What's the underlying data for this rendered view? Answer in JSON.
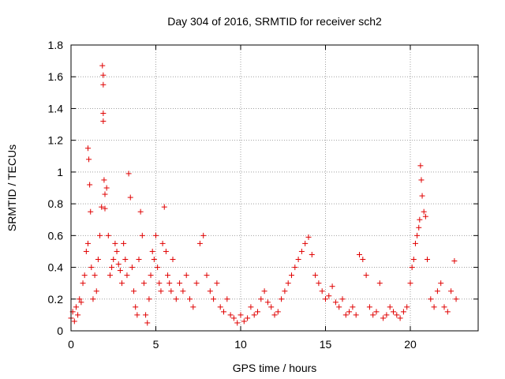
{
  "chart_data": {
    "type": "scatter",
    "title": "Day 304 of 2016, SRMTID for receiver sch2",
    "xlabel": "GPS time / hours",
    "ylabel": "SRMTID / TECUs",
    "xlim": [
      0,
      24
    ],
    "ylim": [
      0,
      1.8
    ],
    "xticks": [
      0,
      5,
      10,
      15,
      20
    ],
    "xtick_labels": [
      "0",
      "5",
      "10",
      "15",
      "20"
    ],
    "yticks": [
      0,
      0.2,
      0.4,
      0.6,
      0.8,
      1,
      1.2,
      1.4,
      1.6,
      1.8
    ],
    "ytick_labels": [
      "0",
      "0.2",
      "0.4",
      "0.6",
      "0.8",
      "1",
      "1.2",
      "1.4",
      "1.6",
      "1.8"
    ],
    "grid": true,
    "marker": "plus",
    "color": "#e00000",
    "series": [
      {
        "name": "SRMTID",
        "x": [
          0.0,
          0.1,
          0.2,
          0.3,
          0.4,
          0.5,
          0.6,
          0.7,
          0.8,
          0.9,
          1.0,
          1.0,
          1.05,
          1.1,
          1.15,
          1.2,
          1.3,
          1.4,
          1.5,
          1.6,
          1.7,
          1.8,
          1.85,
          1.9,
          1.9,
          1.9,
          1.9,
          1.95,
          2.0,
          2.0,
          2.1,
          2.2,
          2.3,
          2.4,
          2.5,
          2.6,
          2.7,
          2.8,
          2.9,
          3.0,
          3.1,
          3.2,
          3.3,
          3.4,
          3.5,
          3.6,
          3.7,
          3.8,
          3.9,
          4.0,
          4.1,
          4.2,
          4.3,
          4.4,
          4.5,
          4.6,
          4.7,
          4.8,
          4.9,
          5.0,
          5.1,
          5.2,
          5.3,
          5.4,
          5.5,
          5.6,
          5.7,
          5.8,
          5.9,
          6.0,
          6.2,
          6.4,
          6.6,
          6.8,
          7.0,
          7.2,
          7.4,
          7.6,
          7.8,
          8.0,
          8.2,
          8.4,
          8.6,
          8.8,
          9.0,
          9.2,
          9.4,
          9.6,
          9.8,
          10.0,
          10.2,
          10.4,
          10.6,
          10.8,
          11.0,
          11.2,
          11.4,
          11.6,
          11.8,
          12.0,
          12.2,
          12.4,
          12.6,
          12.8,
          13.0,
          13.2,
          13.4,
          13.6,
          13.8,
          14.0,
          14.2,
          14.4,
          14.6,
          14.8,
          15.0,
          15.2,
          15.4,
          15.6,
          15.8,
          16.0,
          16.2,
          16.4,
          16.6,
          16.8,
          17.0,
          17.2,
          17.4,
          17.6,
          17.8,
          18.0,
          18.2,
          18.4,
          18.6,
          18.8,
          19.0,
          19.2,
          19.4,
          19.6,
          19.8,
          20.0,
          20.1,
          20.2,
          20.3,
          20.4,
          20.5,
          20.55,
          20.6,
          20.65,
          20.7,
          20.8,
          20.9,
          21.0,
          21.2,
          21.4,
          21.6,
          21.8,
          22.0,
          22.2,
          22.4,
          22.6,
          22.7
        ],
        "y": [
          0.08,
          0.12,
          0.06,
          0.15,
          0.1,
          0.2,
          0.18,
          0.3,
          0.35,
          0.5,
          0.55,
          1.15,
          1.08,
          0.92,
          0.75,
          0.4,
          0.2,
          0.35,
          0.25,
          0.45,
          0.6,
          0.78,
          1.67,
          1.61,
          1.55,
          1.37,
          1.32,
          0.95,
          0.86,
          0.77,
          0.9,
          0.6,
          0.35,
          0.4,
          0.45,
          0.55,
          0.5,
          0.42,
          0.38,
          0.3,
          0.55,
          0.45,
          0.35,
          0.99,
          0.84,
          0.4,
          0.25,
          0.15,
          0.1,
          0.45,
          0.75,
          0.6,
          0.3,
          0.1,
          0.05,
          0.2,
          0.35,
          0.5,
          0.45,
          0.6,
          0.4,
          0.3,
          0.25,
          0.55,
          0.78,
          0.5,
          0.35,
          0.3,
          0.25,
          0.45,
          0.2,
          0.3,
          0.25,
          0.35,
          0.2,
          0.15,
          0.3,
          0.55,
          0.6,
          0.35,
          0.25,
          0.2,
          0.3,
          0.15,
          0.12,
          0.2,
          0.1,
          0.08,
          0.05,
          0.1,
          0.06,
          0.08,
          0.15,
          0.1,
          0.12,
          0.2,
          0.25,
          0.18,
          0.15,
          0.1,
          0.12,
          0.2,
          0.25,
          0.3,
          0.35,
          0.4,
          0.45,
          0.5,
          0.55,
          0.59,
          0.48,
          0.35,
          0.3,
          0.25,
          0.2,
          0.22,
          0.28,
          0.18,
          0.15,
          0.2,
          0.1,
          0.12,
          0.15,
          0.1,
          0.48,
          0.45,
          0.35,
          0.15,
          0.1,
          0.12,
          0.3,
          0.08,
          0.1,
          0.15,
          0.12,
          0.1,
          0.08,
          0.12,
          0.15,
          0.3,
          0.4,
          0.45,
          0.55,
          0.6,
          0.65,
          0.7,
          1.04,
          0.95,
          0.85,
          0.75,
          0.72,
          0.45,
          0.2,
          0.15,
          0.25,
          0.3,
          0.15,
          0.12,
          0.25,
          0.44,
          0.2
        ]
      }
    ]
  }
}
